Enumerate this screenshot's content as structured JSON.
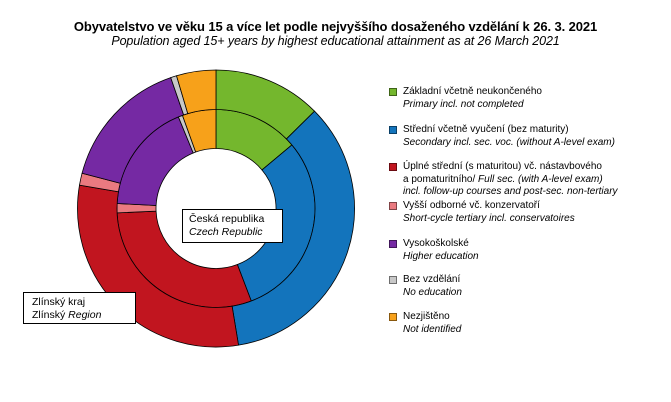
{
  "title": {
    "cs": "Obyvatelstvo ve věku 15 a více let podle nejvyššího dosaženého vzdělání k 26. 3. 2021",
    "en": "Population aged 15+ years by highest educational attainment as at 26 March 2021"
  },
  "chart_data": {
    "type": "pie",
    "subtype": "nested-donut-two-rings",
    "unit": "% of population aged 15+ (estimated from segment angles)",
    "direction": "clockwise",
    "start_angle_deg": 0,
    "legend_position": "right",
    "categories_cs": [
      "Základní včetně neukončeného",
      "Střední včetně vyučení (bez maturity)",
      "Úplné střední (s maturitou) vč. nástavbového a pomaturitního",
      "Vyšší odborné vč. konzervatoří",
      "Vysokoškolské",
      "Bez vzdělání",
      "Nezjištěno"
    ],
    "categories_en": [
      "Primary incl. not completed",
      "Secondary incl. sec. voc. (without A-level exam)",
      "Full sec. (with A-level exam) incl. follow-up courses and post-sec. non-tertiary",
      "Short-cycle tertiary incl. conservatoires",
      "Higher education",
      "No education",
      "Not identified"
    ],
    "colors": [
      "#74B72D",
      "#1374BC",
      "#C1151F",
      "#EA7A80",
      "#7529A3",
      "#C8C8C8",
      "#F7A11A"
    ],
    "series": [
      {
        "name_cs": "Česká republika",
        "name_en": "Czech Republic",
        "ring": "inner",
        "values": [
          13.9,
          30.3,
          30.1,
          1.5,
          18.0,
          0.7,
          5.5
        ]
      },
      {
        "name_cs": "Zlínský kraj",
        "name_en": "Zlínský Region",
        "ring": "outer",
        "values": [
          12.6,
          34.8,
          30.3,
          1.4,
          15.6,
          0.7,
          4.6
        ]
      }
    ]
  },
  "labels": {
    "inner_box": {
      "line1": "Česká republika",
      "line2_italic": "Czech Republic"
    },
    "outer_box": {
      "line1": "Zlínský kraj",
      "line2_prefix": "Zlínský ",
      "line2_italic": "Region"
    }
  },
  "legend": {
    "items": [
      {
        "lines": [
          {
            "n": "Základní včetně neukončeného",
            "i": ""
          },
          {
            "n": "",
            "i": "Primary incl. not completed"
          }
        ]
      },
      {
        "lines": [
          {
            "n": "Střední včetně vyučení (bez maturity)",
            "i": ""
          },
          {
            "n": "",
            "i": "Secondary incl. sec. voc. (without A-level exam)"
          }
        ]
      },
      {
        "lines": [
          {
            "n": "Úplné střední (s maturitou) vč. nástavbového",
            "i": ""
          },
          {
            "n": "a pomaturitního/ ",
            "i": "Full sec. (with A-level exam)"
          },
          {
            "n": "",
            "i": "incl. follow-up courses and post-sec. non-tertiary"
          }
        ]
      },
      {
        "lines": [
          {
            "n": "Vyšší odborné vč. konzervatoří",
            "i": ""
          },
          {
            "n": "",
            "i": "Short-cycle tertiary incl. conservatoires"
          }
        ]
      },
      {
        "lines": [
          {
            "n": "Vysokoškolské",
            "i": ""
          },
          {
            "n": "",
            "i": "Higher education"
          }
        ]
      },
      {
        "lines": [
          {
            "n": "Bez vzdělání",
            "i": ""
          },
          {
            "n": "",
            "i": "No education"
          }
        ]
      },
      {
        "lines": [
          {
            "n": "Nezjištěno",
            "i": ""
          },
          {
            "n": "",
            "i": "Not identified"
          }
        ]
      }
    ]
  }
}
